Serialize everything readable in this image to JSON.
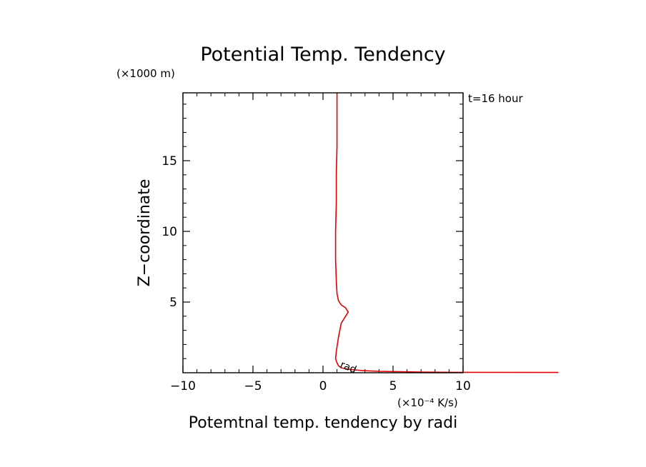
{
  "chart_data": {
    "type": "line",
    "title": "Potential Temp. Tendency",
    "time_label": "t=16 hour",
    "xlabel": "Potemtnal temp. tendency by radi",
    "ylabel": "Z−coordinate",
    "x_unit": "(×10⁻⁴ K/s)",
    "y_unit": "(×1000 m)",
    "xlim": [
      -10,
      10
    ],
    "ylim": [
      0,
      19.8
    ],
    "x_ticks": [
      -10,
      -5,
      0,
      5,
      10
    ],
    "x_tick_labels": [
      "−10",
      "−5",
      "0",
      "5",
      "10"
    ],
    "y_ticks": [
      5,
      10,
      15
    ],
    "y_tick_labels": [
      "5",
      "10",
      "15"
    ],
    "grid": false,
    "series": [
      {
        "name": "rad",
        "color": "#e00000",
        "x": [
          16.8,
          9.3,
          7.0,
          4.0,
          2.8,
          1.8,
          1.3,
          1.1,
          1.0,
          0.9,
          0.95,
          1.1,
          1.3,
          1.8,
          1.6,
          1.3,
          1.1,
          1.0,
          0.95,
          0.9,
          0.9,
          0.95,
          0.95,
          1.0,
          1.0,
          1.0
        ],
        "y": [
          0.02,
          0.03,
          0.05,
          0.1,
          0.15,
          0.25,
          0.35,
          0.5,
          0.7,
          1.0,
          1.5,
          2.5,
          3.5,
          4.3,
          4.6,
          4.8,
          5.1,
          5.6,
          6.5,
          8.0,
          10.0,
          12.0,
          14.0,
          16.0,
          18.0,
          19.8
        ]
      }
    ]
  }
}
